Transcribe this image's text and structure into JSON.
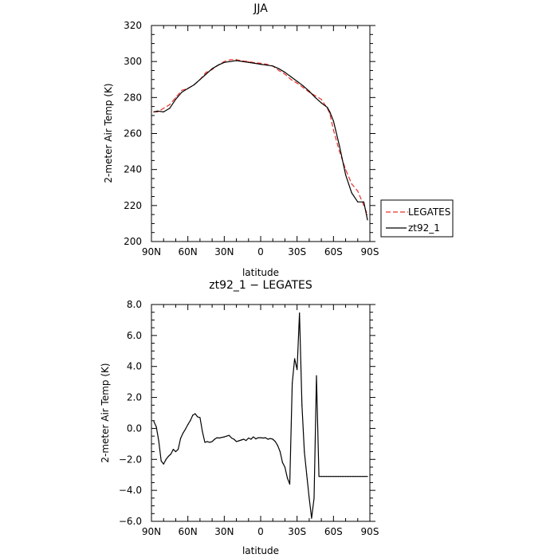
{
  "chart_data": [
    {
      "type": "line",
      "title": "JJA",
      "xlabel": "latitude",
      "ylabel": "2-meter Air Temp (K)",
      "xlim": [
        90,
        -90
      ],
      "ylim": [
        200,
        320
      ],
      "x_ticks": [
        90,
        60,
        30,
        0,
        -30,
        -60,
        -90
      ],
      "x_tick_labels": [
        "90N",
        "60N",
        "30N",
        "0",
        "30S",
        "60S",
        "90S"
      ],
      "y_ticks": [
        200,
        220,
        240,
        260,
        280,
        300,
        320
      ],
      "y_tick_labels": [
        "200",
        "220",
        "240",
        "260",
        "280",
        "300",
        "320"
      ],
      "legend_position": "right",
      "series": [
        {
          "name": "LEGATES",
          "color": "#e8312a",
          "dash": "dashed",
          "x": [
            88,
            85,
            80,
            75,
            70,
            65,
            60,
            55,
            50,
            45,
            40,
            35,
            30,
            25,
            20,
            15,
            10,
            5,
            0,
            -5,
            -10,
            -15,
            -20,
            -25,
            -30,
            -35,
            -40,
            -45,
            -50,
            -55,
            -57,
            -60,
            -65,
            -70,
            -75,
            -80,
            -85,
            -88
          ],
          "y": [
            272,
            272,
            274,
            276,
            280,
            284,
            285,
            287,
            290,
            294,
            295.5,
            298,
            300,
            301,
            301,
            300.3,
            300,
            299.3,
            299,
            298.5,
            297.5,
            295,
            293,
            290,
            288,
            285.5,
            283,
            281,
            279,
            274,
            271,
            262,
            250,
            240,
            232,
            228,
            220,
            215
          ]
        },
        {
          "name": "zt92_1",
          "color": "#000000",
          "dash": "solid",
          "x": [
            88,
            85,
            80,
            75,
            70,
            65,
            60,
            55,
            50,
            45,
            40,
            35,
            30,
            25,
            20,
            15,
            10,
            5,
            0,
            -5,
            -10,
            -15,
            -20,
            -25,
            -30,
            -35,
            -40,
            -45,
            -50,
            -55,
            -57,
            -60,
            -65,
            -70,
            -75,
            -80,
            -85,
            -88
          ],
          "y": [
            272,
            272.5,
            272,
            274,
            279,
            283,
            285,
            287,
            290,
            293,
            296,
            298,
            299.5,
            300,
            300.5,
            300,
            299.5,
            299,
            298.5,
            298,
            297.5,
            296,
            294,
            291.5,
            289,
            286.5,
            283.5,
            280,
            277,
            274.5,
            272,
            267,
            253,
            237,
            227,
            222,
            222,
            212
          ]
        }
      ]
    },
    {
      "type": "line",
      "title": "zt92_1  −  LEGATES",
      "xlabel": "latitude",
      "ylabel": "2-meter Air Temp (K)",
      "xlim": [
        90,
        -90
      ],
      "ylim": [
        -6,
        8
      ],
      "x_ticks": [
        90,
        60,
        30,
        0,
        -30,
        -60,
        -90
      ],
      "x_tick_labels": [
        "90N",
        "60N",
        "30N",
        "0",
        "30S",
        "60S",
        "90S"
      ],
      "y_ticks": [
        -6,
        -4,
        -2,
        0,
        2,
        4,
        6,
        8
      ],
      "y_tick_labels": [
        "−6.0",
        "−4.0",
        "−2.0",
        "0.0",
        "2.0",
        "4.0",
        "6.0",
        "8.0"
      ],
      "series": [
        {
          "color": "#000000",
          "dash": "solid",
          "x": [
            88,
            86,
            84,
            82,
            80,
            78,
            76,
            74,
            72,
            70,
            68,
            66,
            64,
            62,
            60,
            58,
            56,
            54,
            52,
            50,
            48,
            46,
            44,
            42,
            40,
            38,
            36,
            34,
            32,
            30,
            28,
            26,
            24,
            22,
            20,
            18,
            16,
            14,
            12,
            10,
            8,
            6,
            4,
            2,
            0,
            -2,
            -4,
            -6,
            -8,
            -10,
            -12,
            -14,
            -16,
            -18,
            -20,
            -22,
            -24,
            -26,
            -28,
            -30,
            -32,
            -34,
            -36,
            -38,
            -40,
            -42,
            -44,
            -46,
            -48,
            -50,
            -52,
            -54,
            -56,
            -58,
            -60,
            -62,
            -64,
            -66,
            -68,
            -70,
            -72,
            -74,
            -76,
            -78,
            -80,
            -82,
            -84,
            -86,
            -88
          ],
          "y": [
            0.45,
            0.1,
            -0.8,
            -2.1,
            -2.3,
            -2.0,
            -1.8,
            -1.65,
            -1.35,
            -1.5,
            -1.35,
            -0.65,
            -0.3,
            -0.05,
            0.25,
            0.5,
            0.85,
            0.95,
            0.75,
            0.7,
            -0.2,
            -0.9,
            -0.85,
            -0.9,
            -0.85,
            -0.7,
            -0.6,
            -0.62,
            -0.58,
            -0.55,
            -0.5,
            -0.45,
            -0.62,
            -0.7,
            -0.85,
            -0.8,
            -0.75,
            -0.7,
            -0.78,
            -0.62,
            -0.7,
            -0.55,
            -0.68,
            -0.6,
            -0.6,
            -0.62,
            -0.6,
            -0.7,
            -0.65,
            -0.7,
            -0.85,
            -1.1,
            -1.5,
            -2.2,
            -2.5,
            -3.2,
            -3.6,
            2.9,
            4.5,
            3.8,
            7.45,
            1.5,
            -1.5,
            -3.0,
            -4.5,
            -5.8,
            -4.5,
            3.4,
            -3.1,
            -3.1,
            -3.1,
            -3.1,
            -3.1,
            -3.1,
            -3.1,
            -3.1,
            -3.1,
            -3.1,
            -3.1,
            -3.1,
            -3.1,
            -3.1,
            -3.1,
            -3.1,
            -3.1,
            -3.1,
            -3.1,
            -3.1,
            -3.1
          ]
        }
      ]
    }
  ]
}
